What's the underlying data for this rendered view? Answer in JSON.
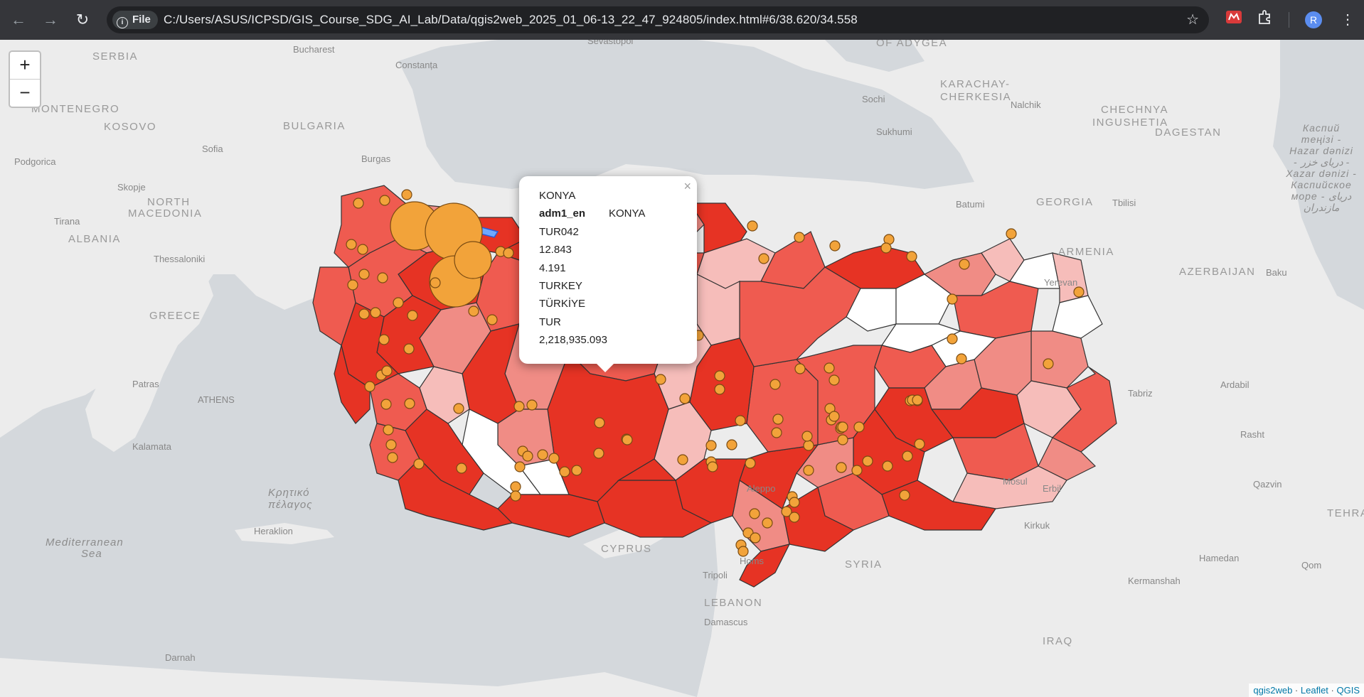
{
  "browser": {
    "url": "C:/Users/ASUS/ICPSD/GIS_Course_SDG_AI_Lab/Data/qgis2web_2025_01_06-13_22_47_924805/index.html#6/38.620/34.558",
    "scheme_chip": "File",
    "avatar_letter": "R"
  },
  "map": {
    "zoom_in": "+",
    "zoom_out": "−",
    "labels": {
      "serbia": "SERBIA",
      "montenegro": "MONTENEGRO",
      "kosovo": "KOSOVO",
      "bulgaria": "BULGARIA",
      "north_macedonia_1": "NORTH",
      "north_macedonia_2": "MACEDONIA",
      "albania": "ALBANIA",
      "greece": "GREECE",
      "georgia": "GEORGIA",
      "armenia": "ARMENIA",
      "azerbaijan": "AZERBAIJAN",
      "dagestan": "DAGESTAN",
      "chechnya": "CHECHNYA",
      "ingushetia": "INGUSHETIA",
      "karachay_1": "KARACHAY-",
      "karachay_2": "CHERKESIA",
      "adygea": "OF ADYGEA",
      "cyprus": "CYPRUS",
      "syria": "SYRIA",
      "lebanon": "LEBANON",
      "iraq": "IRAQ",
      "tehran": "TEHRAN",
      "med_sea_1": "Mediterranean",
      "med_sea_2": "Sea",
      "cretan_1": "Κρητικό",
      "cretan_2": "πέλαγος",
      "caspian": "Каспий теңізі - Hazar dənizi - دریای خزر - Xazar dənizi - Каспийское море - دریای مازندران",
      "bucharest": "Bucharest",
      "constanta": "Constanța",
      "sofia": "Sofia",
      "burgas": "Burgas",
      "podgorica": "Podgorica",
      "skopje": "Skopje",
      "tirana": "Tirana",
      "thessaloniki": "Thessaloniki",
      "patras": "Patras",
      "athens": "ATHENS",
      "kalamata": "Kalamata",
      "heraklion": "Heraklion",
      "sochi": "Sochi",
      "sukhumi": "Sukhumi",
      "nalchik": "Nalchik",
      "batumi": "Batumi",
      "tbilisi": "Tbilisi",
      "yerevan": "Yerevan",
      "baku": "Baku",
      "sevastopol": "Sevastopol",
      "tabriz": "Tabriz",
      "ardabil": "Ardabil",
      "rasht": "Rasht",
      "qazvin": "Qazvin",
      "hamedan": "Hamedan",
      "qom": "Qom",
      "kermanshah": "Kermanshah",
      "mosul": "Mosul",
      "erbil": "Erbil",
      "kirkuk": "Kirkuk",
      "aleppo": "Aleppo",
      "homs": "Homs",
      "tripoli": "Tripoli",
      "damascus": "Damascus",
      "darnah": "Darnah"
    },
    "colors": {
      "dark_red": "#e63324",
      "mid_red": "#ef5b50",
      "light_red": "#f08c85",
      "pale_red": "#f6bdba",
      "point_fill": "#f2a33a",
      "point_stroke": "#7a4b12"
    }
  },
  "popup": {
    "title": "KONYA",
    "field_name": "adm1_en",
    "field_value": "KONYA",
    "code": "TUR042",
    "value1": "12.843",
    "value2": "4.191",
    "country_en": "TURKEY",
    "country_local": "TÜRKİYE",
    "iso": "TUR",
    "area": "2,218,935.093",
    "close": "×"
  },
  "attribution": {
    "a": "qgis2web",
    "b": "Leaflet",
    "c": "QGIS"
  }
}
